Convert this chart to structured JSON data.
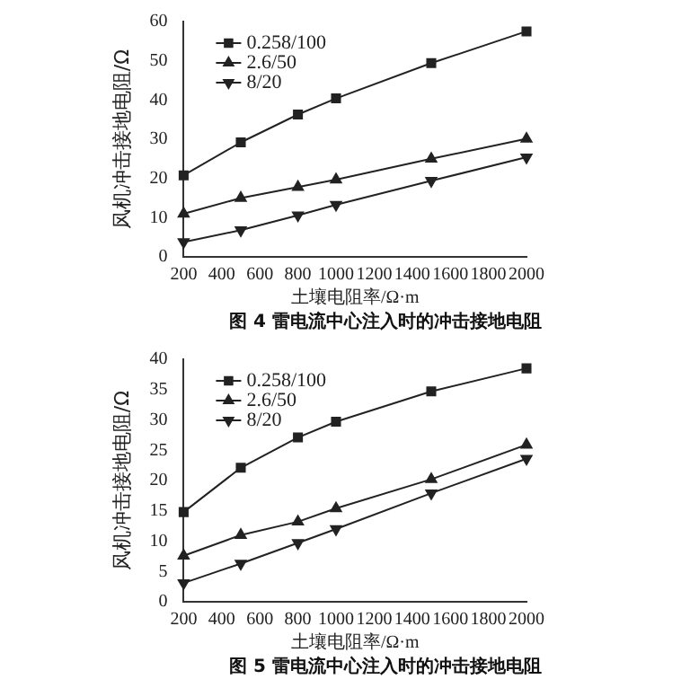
{
  "chart_data": [
    {
      "type": "line",
      "annotations": [
        "图 4 雷电流中心注入时的冲击接地电阻"
      ],
      "xlabel": "土壤电阻率/Ω·m",
      "ylabel": "风机冲击接地电阻/Ω",
      "x": [
        200,
        500,
        800,
        1000,
        1500,
        2000
      ],
      "xlim": [
        200,
        2000
      ],
      "xticks": [
        200,
        400,
        600,
        800,
        1000,
        1200,
        1400,
        1600,
        1800,
        2000
      ],
      "ylim": [
        0,
        60
      ],
      "yticks": [
        0,
        10,
        20,
        30,
        40,
        50,
        60
      ],
      "grid": false,
      "legend": "top left",
      "line_style": "solid",
      "series": [
        {
          "name": "0.258/100",
          "color": "#222222",
          "marker": "square",
          "values": [
            20.8,
            29.2,
            36.3,
            40.4,
            49.4,
            57.5
          ]
        },
        {
          "name": "2.6/50",
          "color": "#222222",
          "marker": "triangle",
          "values": [
            11,
            15,
            17.8,
            19.7,
            25,
            30.1
          ]
        },
        {
          "name": "8/20",
          "color": "#222222",
          "marker": "triangle-down",
          "values": [
            3.8,
            6.8,
            10.6,
            13.3,
            19.4,
            25.4
          ]
        }
      ]
    },
    {
      "type": "line",
      "annotations": [
        "图 5 雷电流中心注入时的冲击接地电阻"
      ],
      "xlabel": "土壤电阻率/Ω·m",
      "ylabel": "风机冲击接地电阻/Ω",
      "x": [
        200,
        500,
        800,
        1000,
        1500,
        2000
      ],
      "xlim": [
        200,
        2000
      ],
      "xticks": [
        200,
        400,
        600,
        800,
        1000,
        1200,
        1400,
        1600,
        1800,
        2000
      ],
      "ylim": [
        0,
        40
      ],
      "yticks": [
        0,
        5,
        10,
        15,
        20,
        25,
        30,
        35,
        40
      ],
      "grid": false,
      "legend": "top left",
      "line_style": "solid",
      "series": [
        {
          "name": "0.258/100",
          "color": "#222222",
          "marker": "square",
          "values": [
            14.8,
            22.1,
            27.1,
            29.7,
            34.7,
            38.5
          ]
        },
        {
          "name": "2.6/50",
          "color": "#222222",
          "marker": "triangle",
          "values": [
            7.6,
            11,
            13.2,
            15.4,
            20.2,
            25.9
          ]
        },
        {
          "name": "8/20",
          "color": "#222222",
          "marker": "triangle-down",
          "values": [
            3.1,
            6.3,
            9.7,
            12,
            17.9,
            23.6
          ]
        }
      ]
    }
  ]
}
